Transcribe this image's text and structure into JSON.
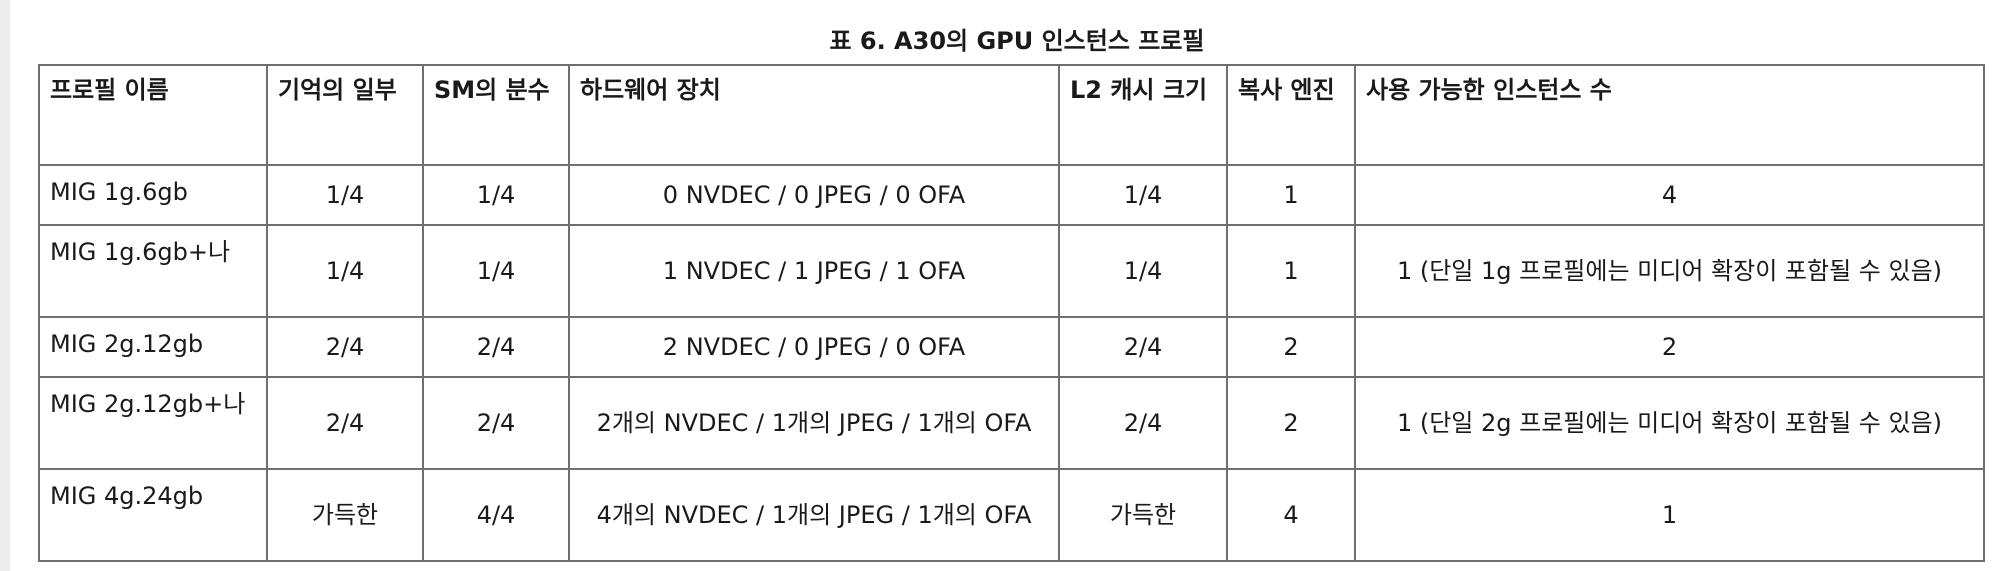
{
  "caption": "표 6. A30의 GPU 인스턴스 프로필",
  "table": {
    "headers": [
      "프로필 이름",
      "기억의 일부",
      "SM의 분수",
      "하드웨어 장치",
      "L2 캐시 크기",
      "복사 엔진",
      "사용 가능한 인스턴스 수"
    ],
    "rows": [
      [
        "MIG 1g.6gb",
        "1/4",
        "1/4",
        "0 NVDEC / 0 JPEG / 0 OFA",
        "1/4",
        "1",
        "4"
      ],
      [
        "MIG 1g.6gb+나",
        "1/4",
        "1/4",
        "1 NVDEC / 1 JPEG / 1 OFA",
        "1/4",
        "1",
        "1 (단일 1g 프로필에는 미디어 확장이 포함될 수 있음)"
      ],
      [
        "MIG 2g.12gb",
        "2/4",
        "2/4",
        "2 NVDEC / 0 JPEG / 0 OFA",
        "2/4",
        "2",
        "2"
      ],
      [
        "MIG 2g.12gb+나",
        "2/4",
        "2/4",
        "2개의 NVDEC / 1개의 JPEG / 1개의 OFA",
        "2/4",
        "2",
        "1 (단일 2g 프로필에는 미디어 확장이 포함될 수 있음)"
      ],
      [
        "MIG 4g.24gb",
        "가득한",
        "4/4",
        "4개의 NVDEC / 1개의 JPEG / 1개의 OFA",
        "가득한",
        "4",
        "1"
      ]
    ]
  }
}
